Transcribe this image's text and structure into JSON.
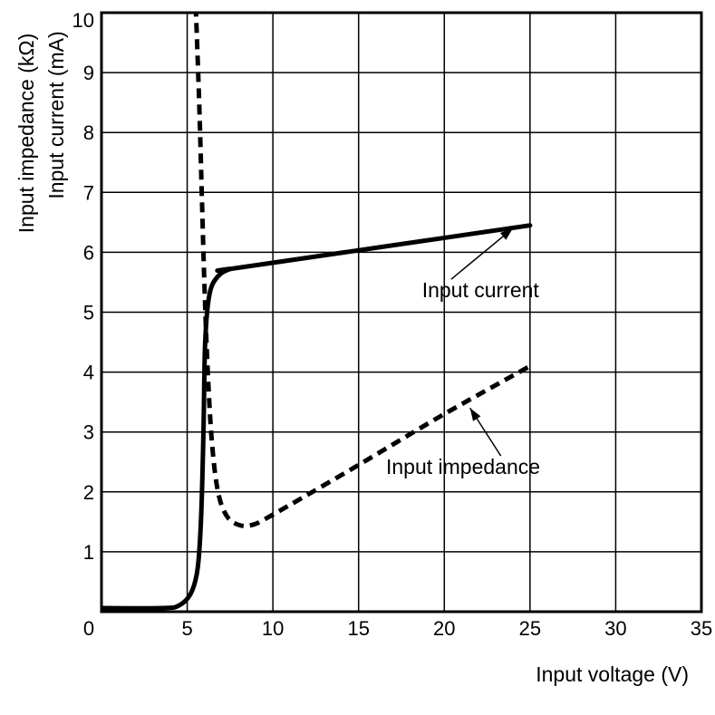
{
  "chart_data": {
    "type": "line",
    "xlabel": "Input voltage (V)",
    "ylabel_lines": [
      "Input impedance (kΩ)",
      "Input current (mA)"
    ],
    "xlim": [
      0,
      35
    ],
    "ylim": [
      0,
      10
    ],
    "x_ticks": [
      "0",
      "5",
      "10",
      "15",
      "20",
      "25",
      "30",
      "35"
    ],
    "y_ticks": [
      "1",
      "2",
      "3",
      "4",
      "5",
      "6",
      "7",
      "8",
      "9",
      "10"
    ],
    "grid": true,
    "series": [
      {
        "name": "Input current",
        "style": "solid",
        "color": "#000000",
        "points": [
          [
            0,
            0.06
          ],
          [
            3.5,
            0.06
          ],
          [
            4.5,
            0.1
          ],
          [
            5.2,
            0.3
          ],
          [
            5.6,
            0.7
          ],
          [
            5.8,
            1.5
          ],
          [
            5.95,
            3.0
          ],
          [
            6.05,
            4.5
          ],
          [
            6.3,
            5.3
          ],
          [
            6.8,
            5.6
          ],
          [
            7.5,
            5.72
          ],
          [
            8.2,
            5.75
          ],
          [
            25,
            6.45
          ]
        ]
      },
      {
        "name": "Input impedance",
        "style": "dashed",
        "color": "#000000",
        "points": [
          [
            5.5,
            10.1
          ],
          [
            5.7,
            8.5
          ],
          [
            5.85,
            7.0
          ],
          [
            6.0,
            5.5
          ],
          [
            6.2,
            4.0
          ],
          [
            6.45,
            2.8
          ],
          [
            6.8,
            2.0
          ],
          [
            7.3,
            1.6
          ],
          [
            8.0,
            1.45
          ],
          [
            8.8,
            1.45
          ],
          [
            10,
            1.62
          ],
          [
            15,
            2.45
          ],
          [
            20,
            3.3
          ],
          [
            25,
            4.1
          ]
        ]
      }
    ],
    "annotations": [
      {
        "text": "Input current",
        "label_x": 18.7,
        "label_y": 5.25,
        "arrow_from": [
          20.4,
          5.55
        ],
        "arrow_to": [
          24.0,
          6.4
        ]
      },
      {
        "text": "Input impedance",
        "label_x": 16.6,
        "label_y": 2.3,
        "arrow_from": [
          23.3,
          2.6
        ],
        "arrow_to": [
          21.5,
          3.4
        ]
      }
    ]
  }
}
